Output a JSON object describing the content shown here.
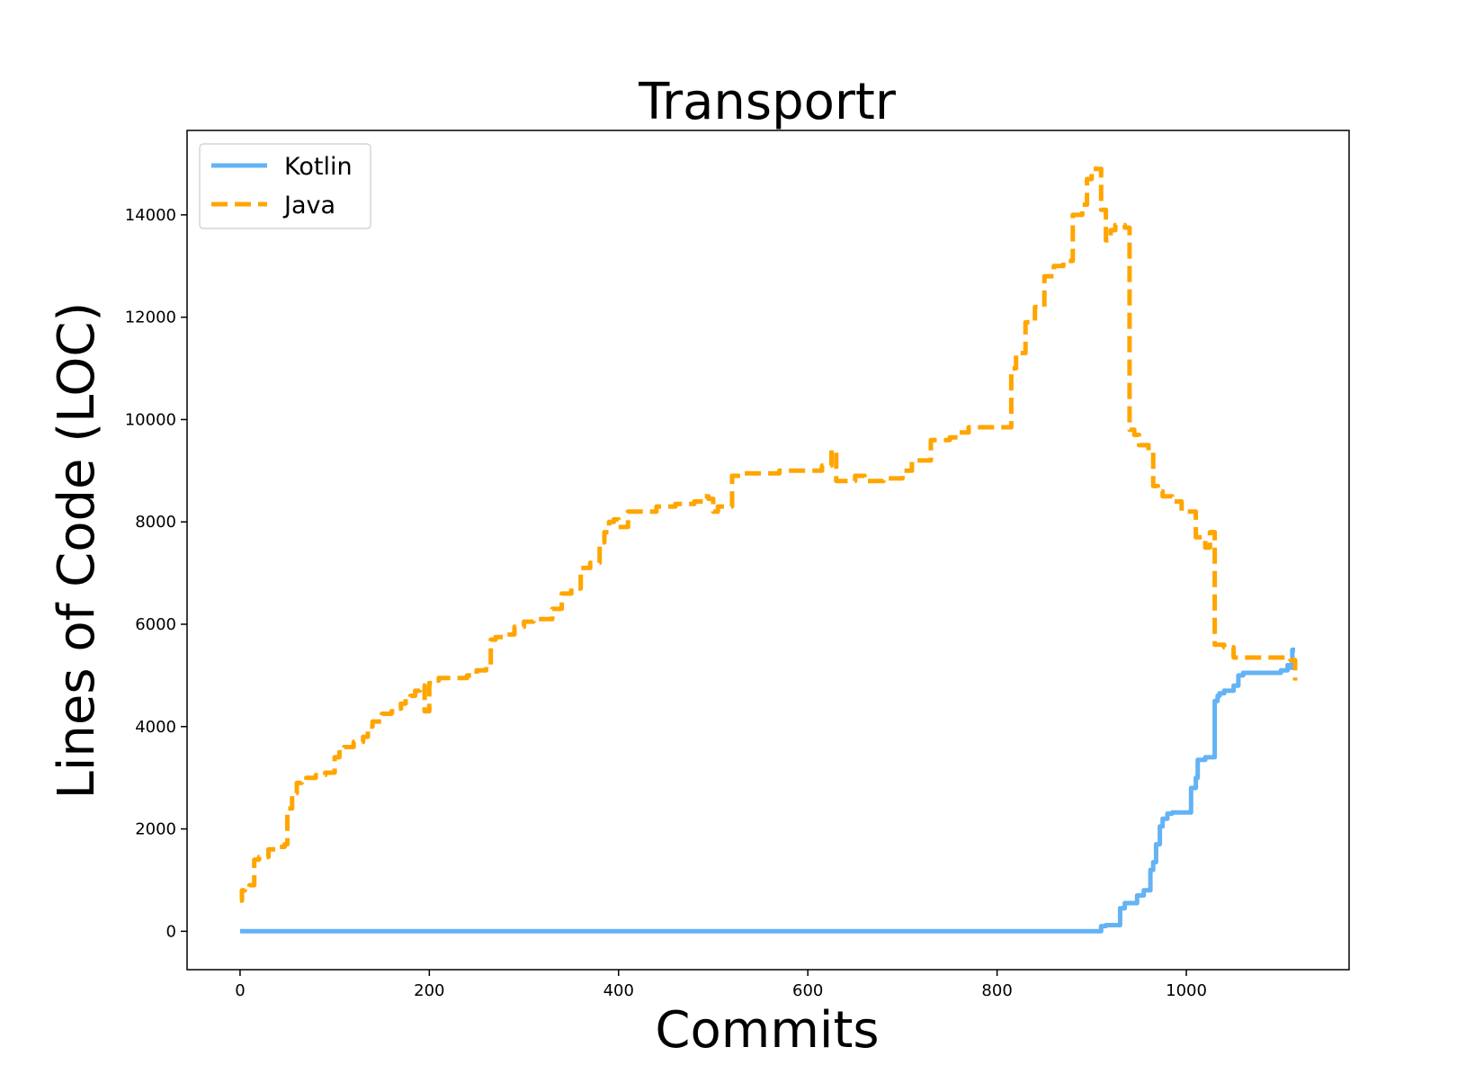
{
  "chart_data": {
    "type": "line",
    "title": "Transportr",
    "xlabel": "Commits",
    "ylabel": "Lines of Code (LOC)",
    "xlim": [
      -56,
      1172
    ],
    "ylim": [
      -750,
      15650
    ],
    "xticks": [
      0,
      200,
      400,
      600,
      800,
      1000
    ],
    "yticks": [
      0,
      2000,
      4000,
      6000,
      8000,
      10000,
      12000,
      14000
    ],
    "legend_position": "upper-left",
    "grid": false,
    "series": [
      {
        "name": "Kotlin",
        "color": "#63b3f5",
        "dash": "solid",
        "x": [
          0,
          100,
          200,
          300,
          400,
          500,
          600,
          700,
          800,
          905,
          910,
          915,
          920,
          928,
          930,
          935,
          940,
          948,
          955,
          962,
          965,
          968,
          972,
          975,
          980,
          985,
          1000,
          1005,
          1010,
          1012,
          1018,
          1020,
          1028,
          1030,
          1033,
          1035,
          1040,
          1050,
          1055,
          1060,
          1070,
          1080,
          1095,
          1100,
          1105,
          1107,
          1110,
          1112,
          1115
        ],
        "y": [
          0,
          0,
          0,
          0,
          0,
          0,
          0,
          0,
          0,
          0,
          100,
          120,
          120,
          120,
          450,
          550,
          550,
          700,
          800,
          1200,
          1350,
          1700,
          2050,
          2200,
          2300,
          2320,
          2320,
          2800,
          3000,
          3350,
          3350,
          3400,
          3400,
          4500,
          4600,
          4650,
          4700,
          4800,
          5000,
          5050,
          5050,
          5050,
          5050,
          5100,
          5100,
          5200,
          5150,
          5500,
          5500
        ]
      },
      {
        "name": "Java",
        "color": "#ffa500",
        "dash": "dashed",
        "x": [
          0,
          2,
          5,
          10,
          15,
          20,
          30,
          40,
          47,
          50,
          55,
          60,
          65,
          70,
          80,
          90,
          100,
          105,
          110,
          120,
          130,
          135,
          140,
          150,
          160,
          165,
          170,
          175,
          180,
          185,
          190,
          192,
          195,
          200,
          205,
          210,
          220,
          230,
          240,
          250,
          260,
          265,
          270,
          280,
          290,
          300,
          310,
          320,
          330,
          340,
          350,
          360,
          370,
          380,
          385,
          390,
          395,
          400,
          410,
          420,
          440,
          460,
          480,
          490,
          495,
          500,
          505,
          510,
          520,
          530,
          550,
          570,
          600,
          615,
          625,
          630,
          650,
          660,
          680,
          700,
          710,
          730,
          750,
          760,
          770,
          790,
          800,
          810,
          815,
          820,
          830,
          840,
          850,
          860,
          870,
          880,
          890,
          895,
          900,
          905,
          910,
          915,
          920,
          925,
          930,
          935,
          940,
          945,
          950,
          960,
          965,
          970,
          975,
          985,
          995,
          1010,
          1020,
          1025,
          1030,
          1035,
          1040,
          1050,
          1060,
          1070,
          1080,
          1090,
          1100,
          1105,
          1110,
          1115
        ],
        "y": [
          600,
          800,
          850,
          900,
          1400,
          1450,
          1600,
          1650,
          1700,
          2400,
          2700,
          2900,
          2950,
          3000,
          3050,
          3100,
          3400,
          3500,
          3600,
          3700,
          3800,
          4000,
          4100,
          4250,
          4300,
          4350,
          4450,
          4550,
          4600,
          4700,
          4750,
          4800,
          4300,
          4850,
          4900,
          4950,
          4950,
          4950,
          5000,
          5100,
          5200,
          5700,
          5750,
          5800,
          5950,
          6050,
          6100,
          6100,
          6300,
          6600,
          6700,
          7100,
          7200,
          7600,
          7800,
          8000,
          8050,
          7900,
          8200,
          8200,
          8300,
          8350,
          8400,
          8500,
          8450,
          8200,
          8300,
          8300,
          8900,
          8950,
          8950,
          9000,
          9000,
          9100,
          9400,
          8800,
          8900,
          8800,
          8850,
          9000,
          9200,
          9600,
          9650,
          9750,
          9850,
          9850,
          9850,
          9850,
          11000,
          11300,
          11900,
          12200,
          12800,
          13000,
          13100,
          14000,
          14200,
          14700,
          14900,
          14900,
          14100,
          13500,
          13700,
          13800,
          13800,
          13750,
          9800,
          9700,
          9500,
          9400,
          8700,
          8600,
          8500,
          8400,
          8200,
          7700,
          7500,
          7800,
          5600,
          5600,
          5550,
          5350,
          5350,
          5350,
          5350,
          5350,
          5350,
          5350,
          5300,
          4900
        ]
      }
    ]
  }
}
